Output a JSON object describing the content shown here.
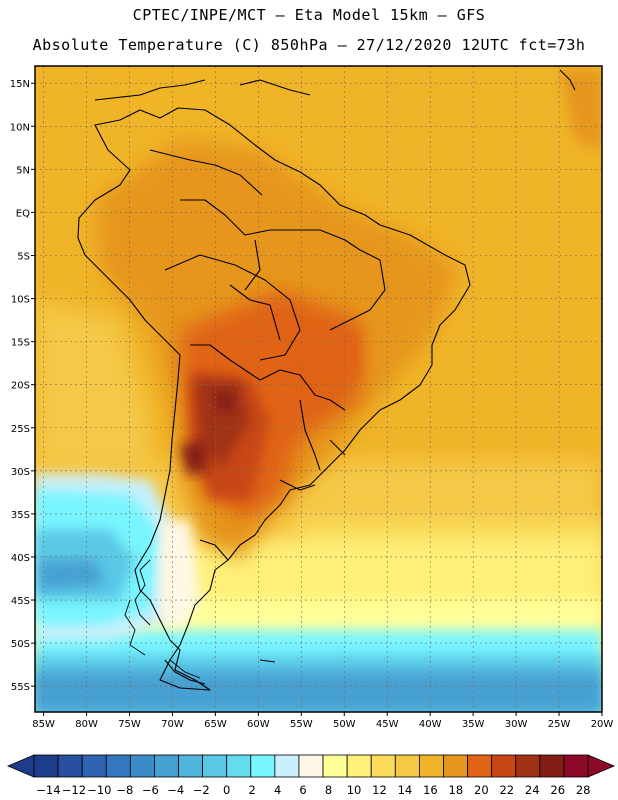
{
  "header": {
    "line1": "CPTEC/INPE/MCT –  Eta Model 15km – GFS",
    "line2": "Absolute Temperature (C) 850hPa – 27/12/2020 12UTC fct=73h"
  },
  "map": {
    "variable": "Absolute Temperature (C) 850hPa",
    "lat_ticks": [
      "15N",
      "10N",
      "5N",
      "EQ",
      "5S",
      "10S",
      "15S",
      "20S",
      "25S",
      "30S",
      "35S",
      "40S",
      "45S",
      "50S",
      "55S"
    ],
    "lon_ticks": [
      "85W",
      "80W",
      "75W",
      "70W",
      "65W",
      "60W",
      "55W",
      "50W",
      "45W",
      "40W",
      "35W",
      "30W",
      "25W",
      "20W"
    ],
    "lat_range": [
      -58,
      17
    ],
    "lon_range": [
      -86,
      -20
    ]
  },
  "legend": {
    "labels": [
      "-14",
      "-12",
      "-10",
      "-8",
      "-6",
      "-4",
      "-2",
      "0",
      "2",
      "4",
      "6",
      "8",
      "10",
      "12",
      "14",
      "16",
      "18",
      "20",
      "22",
      "24",
      "26",
      "28"
    ],
    "colors": [
      "#1e3c8c",
      "#2850a0",
      "#2e64b0",
      "#3278be",
      "#3a8cc8",
      "#46a0d2",
      "#50b4dc",
      "#5ac8e6",
      "#64dcf0",
      "#78f5ff",
      "#c8f0ff",
      "#fff8e6",
      "#ffff99",
      "#fff07a",
      "#fadc5a",
      "#f5c846",
      "#f0b428",
      "#e6961e",
      "#e06414",
      "#c84614",
      "#a03214",
      "#821e14",
      "#8c0a28"
    ]
  }
}
